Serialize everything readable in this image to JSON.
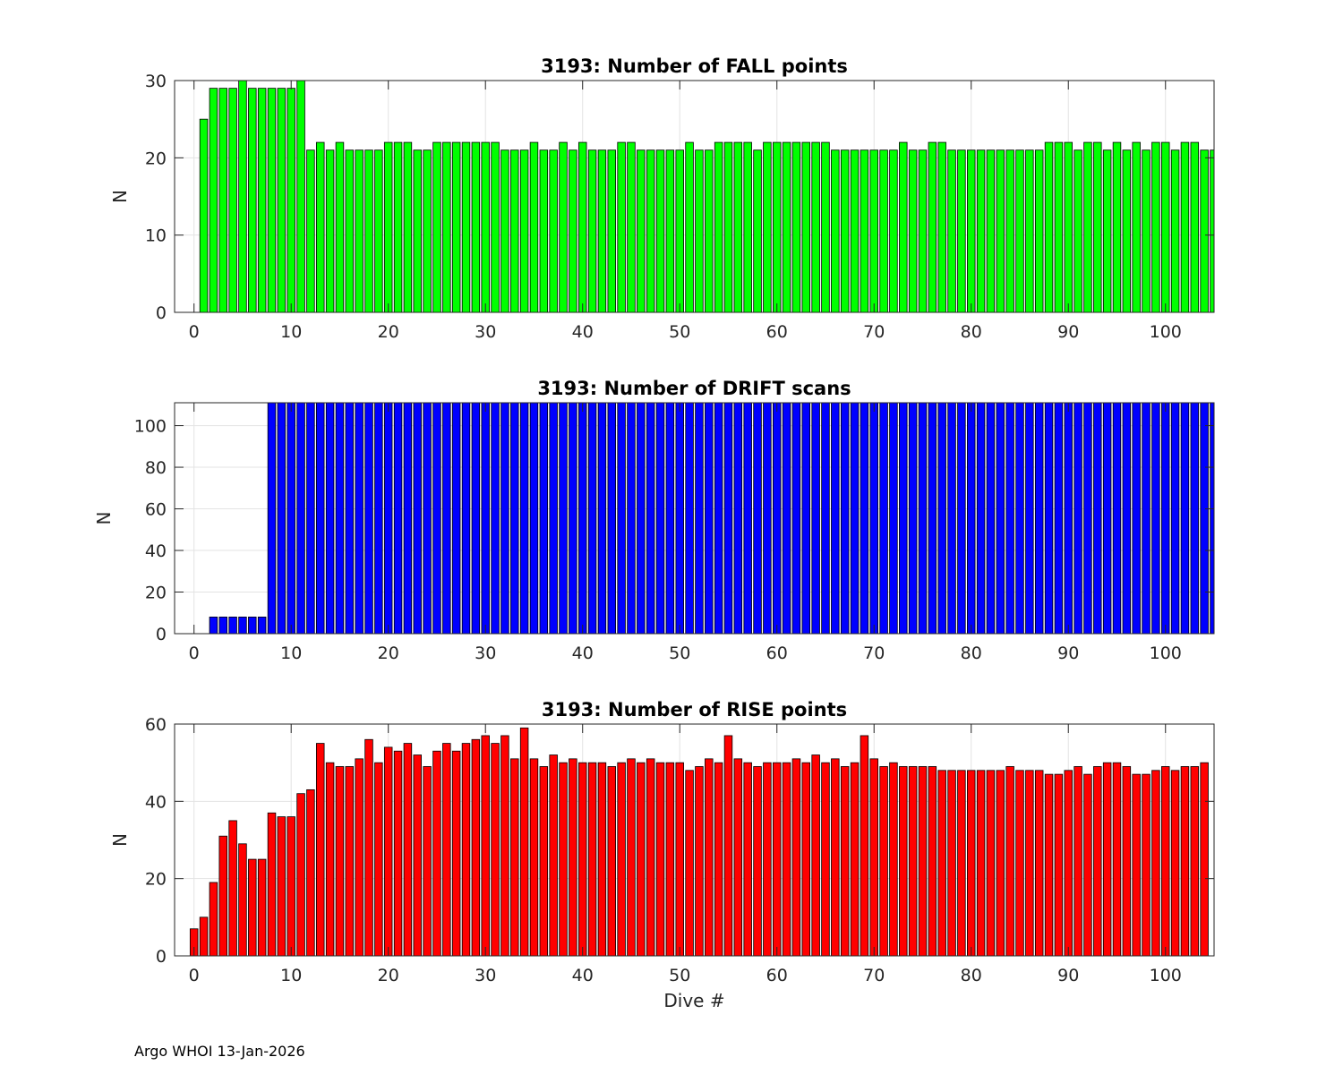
{
  "figure": {
    "footer": "Argo WHOI 13-Jan-2026",
    "xlabel_bottom": "Dive #"
  },
  "chart_data": [
    {
      "type": "bar",
      "title": "3193: Number of FALL points",
      "xlabel": "",
      "ylabel": "N",
      "xlim": [
        -2,
        105
      ],
      "ylim": [
        0,
        30
      ],
      "yticks": [
        0,
        10,
        20,
        30
      ],
      "xticks": [
        0,
        10,
        20,
        30,
        40,
        50,
        60,
        70,
        80,
        90,
        100
      ],
      "grid": true,
      "color": "#00ff00",
      "x_start": 1,
      "values": [
        25,
        29,
        29,
        29,
        30,
        29,
        29,
        29,
        29,
        29,
        30,
        21,
        22,
        21,
        22,
        21,
        21,
        21,
        21,
        22,
        22,
        22,
        21,
        21,
        22,
        22,
        22,
        22,
        22,
        22,
        22,
        21,
        21,
        21,
        22,
        21,
        21,
        22,
        21,
        22,
        21,
        21,
        21,
        22,
        22,
        21,
        21,
        21,
        21,
        21,
        22,
        21,
        21,
        22,
        22,
        22,
        22,
        21,
        22,
        22,
        22,
        22,
        22,
        22,
        22,
        21,
        21,
        21,
        21,
        21,
        21,
        21,
        22,
        21,
        21,
        22,
        22,
        21,
        21,
        21,
        21,
        21,
        21,
        21,
        21,
        21,
        21,
        22,
        22,
        22,
        21,
        22,
        22,
        21,
        22,
        21,
        22,
        21,
        22,
        22,
        21,
        22,
        22,
        21,
        21
      ]
    },
    {
      "type": "bar",
      "title": "3193: Number of DRIFT scans",
      "xlabel": "",
      "ylabel": "N",
      "xlim": [
        -2,
        105
      ],
      "ylim": [
        0,
        111
      ],
      "yticks": [
        0,
        20,
        40,
        60,
        80,
        100
      ],
      "xticks": [
        0,
        10,
        20,
        30,
        40,
        50,
        60,
        70,
        80,
        90,
        100
      ],
      "grid": true,
      "color": "#0000ff",
      "x_start": -1,
      "values": [
        0,
        0,
        0,
        8,
        8,
        8,
        8,
        8,
        8,
        112,
        112,
        112,
        112,
        112,
        112,
        112,
        112,
        112,
        112,
        112,
        112,
        112,
        112,
        112,
        112,
        112,
        112,
        112,
        112,
        112,
        112,
        112,
        112,
        112,
        112,
        112,
        112,
        112,
        112,
        112,
        112,
        112,
        112,
        112,
        112,
        112,
        112,
        112,
        112,
        112,
        112,
        112,
        112,
        112,
        112,
        112,
        112,
        112,
        112,
        112,
        112,
        112,
        112,
        112,
        112,
        112,
        112,
        112,
        112,
        112,
        112,
        112,
        112,
        112,
        112,
        112,
        112,
        112,
        112,
        112,
        112,
        112,
        112,
        112,
        112,
        112,
        112,
        112,
        112,
        112,
        112,
        112,
        112,
        112,
        112,
        112,
        112,
        112,
        112,
        112,
        112,
        112,
        112,
        112,
        112,
        112,
        112
      ]
    },
    {
      "type": "bar",
      "title": "3193: Number of RISE points",
      "xlabel": "Dive #",
      "ylabel": "N",
      "xlim": [
        -2,
        105
      ],
      "ylim": [
        0,
        60
      ],
      "yticks": [
        0,
        20,
        40,
        60
      ],
      "xticks": [
        0,
        10,
        20,
        30,
        40,
        50,
        60,
        70,
        80,
        90,
        100
      ],
      "grid": true,
      "color": "#ff0000",
      "x_start": 0,
      "values": [
        7,
        10,
        19,
        31,
        35,
        29,
        25,
        25,
        37,
        36,
        36,
        42,
        43,
        55,
        50,
        49,
        49,
        51,
        56,
        50,
        54,
        53,
        55,
        52,
        49,
        53,
        55,
        53,
        55,
        56,
        57,
        55,
        57,
        51,
        59,
        51,
        49,
        52,
        50,
        51,
        50,
        50,
        50,
        49,
        50,
        51,
        50,
        51,
        50,
        50,
        50,
        48,
        49,
        51,
        50,
        57,
        51,
        50,
        49,
        50,
        50,
        50,
        51,
        50,
        52,
        50,
        51,
        49,
        50,
        57,
        51,
        49,
        50,
        49,
        49,
        49,
        49,
        48,
        48,
        48,
        48,
        48,
        48,
        48,
        49,
        48,
        48,
        48,
        47,
        47,
        48,
        49,
        47,
        49,
        50,
        50,
        49,
        47,
        47,
        48,
        49,
        48,
        49,
        49,
        50
      ]
    }
  ]
}
